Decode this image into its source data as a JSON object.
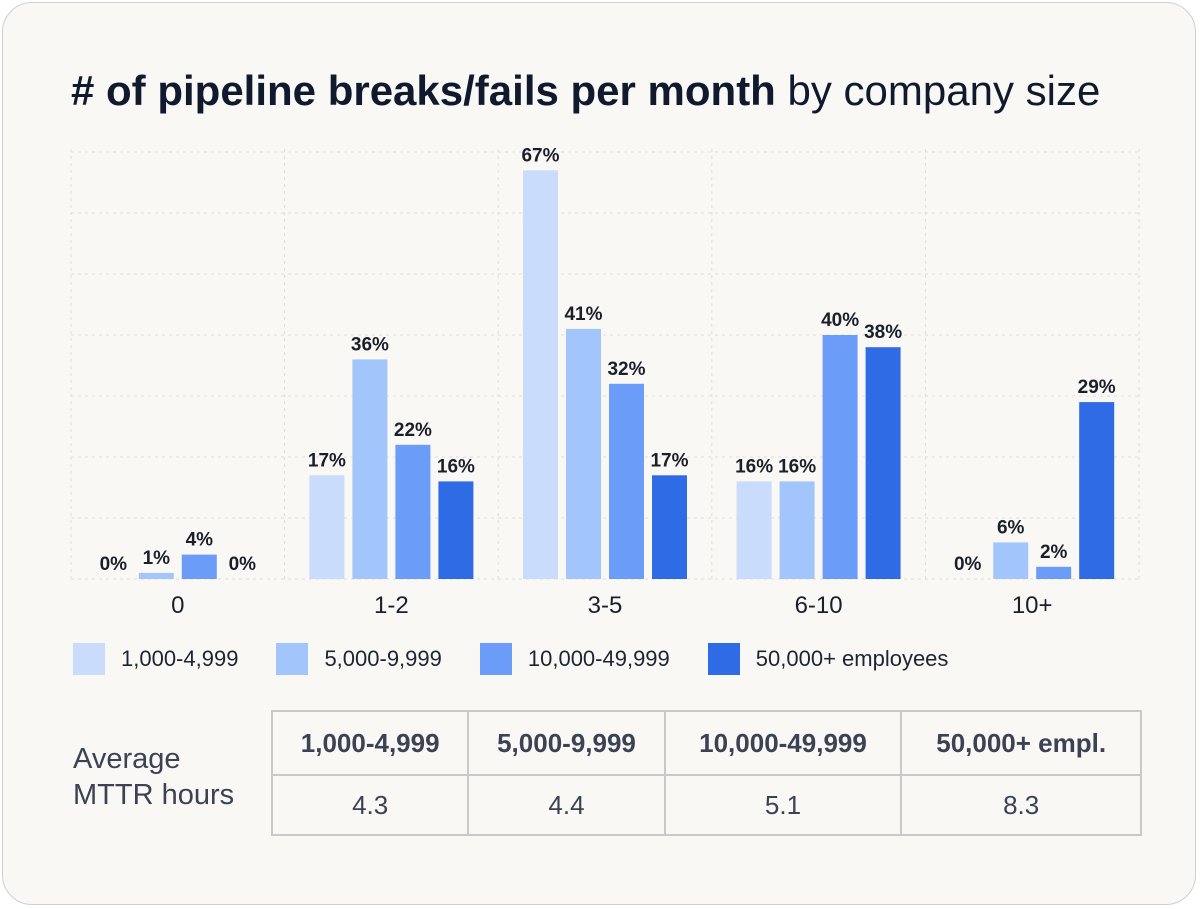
{
  "title": {
    "bold": "# of pipeline breaks/fails per month",
    "regular": " by company size"
  },
  "chart_data": {
    "type": "bar",
    "title": "# of pipeline breaks/fails per month by company size",
    "xlabel": "",
    "ylabel": "",
    "ylim": [
      0,
      70
    ],
    "grid": true,
    "legend_position": "bottom",
    "categories": [
      "0",
      "1-2",
      "3-5",
      "6-10",
      "10+"
    ],
    "series": [
      {
        "name": "1,000-4,999",
        "color": "#c9dcfb",
        "values": [
          0,
          17,
          67,
          16,
          0
        ],
        "labels": [
          "0%",
          "17%",
          "67%",
          "16%",
          "0%"
        ]
      },
      {
        "name": "5,000-9,999",
        "color": "#a2c6fb",
        "values": [
          1,
          36,
          41,
          16,
          6
        ],
        "labels": [
          "1%",
          "36%",
          "41%",
          "16%",
          "6%"
        ]
      },
      {
        "name": "10,000-49,999",
        "color": "#6b9cf8",
        "values": [
          4,
          22,
          32,
          40,
          2
        ],
        "labels": [
          "4%",
          "22%",
          "32%",
          "40%",
          "2%"
        ]
      },
      {
        "name": "50,000+ employees",
        "color": "#2f6be4",
        "values": [
          0,
          16,
          17,
          38,
          29
        ],
        "labels": [
          "0%",
          "16%",
          "17%",
          "38%",
          "29%"
        ]
      }
    ]
  },
  "mttr": {
    "label": "Average MTTR hours",
    "headers": [
      "1,000-4,999",
      "5,000-9,999",
      "10,000-49,999",
      "50,000+ empl."
    ],
    "values": [
      "4.3",
      "4.4",
      "5.1",
      "8.3"
    ]
  }
}
